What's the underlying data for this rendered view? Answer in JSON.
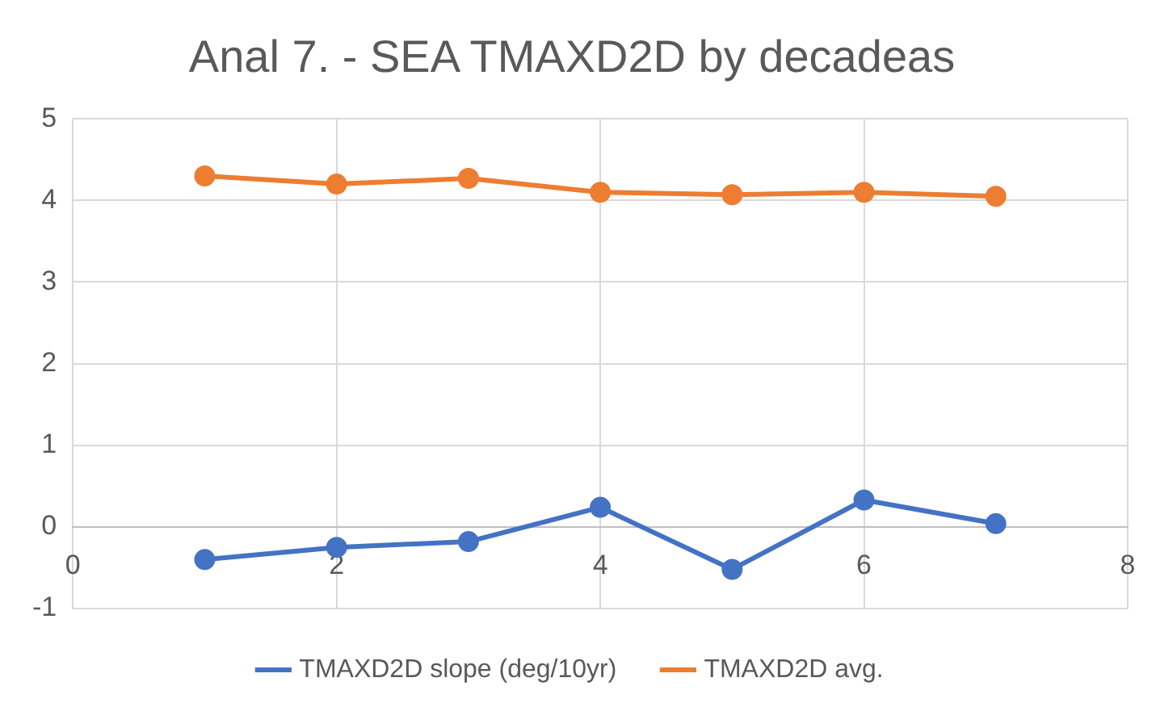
{
  "chart_data": {
    "type": "line",
    "title": "Anal 7. - SEA TMAXD2D by decadeas",
    "x": [
      1,
      2,
      3,
      4,
      5,
      6,
      7
    ],
    "series": [
      {
        "name": "TMAXD2D slope (deg/10yr)",
        "color": "#4472c4",
        "values": [
          -0.4,
          -0.25,
          -0.18,
          0.24,
          -0.52,
          0.33,
          0.04
        ]
      },
      {
        "name": "TMAXD2D avg.",
        "color": "#ed7d31",
        "values": [
          4.3,
          4.2,
          4.27,
          4.1,
          4.07,
          4.1,
          4.05
        ]
      }
    ],
    "xlim": [
      0,
      8
    ],
    "xticks": [
      0,
      2,
      4,
      6,
      8
    ],
    "ylim": [
      -1,
      5
    ],
    "yticks": [
      -1,
      0,
      1,
      2,
      3,
      4,
      5
    ],
    "grid": true,
    "legend": "bottom",
    "marker": "circle"
  }
}
